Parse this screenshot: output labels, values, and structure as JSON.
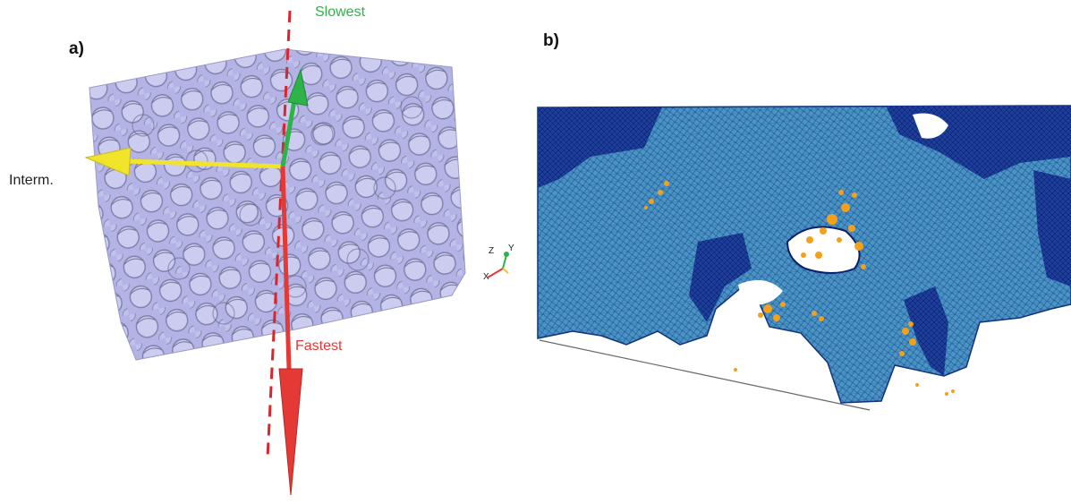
{
  "panel_a": {
    "label": "a)",
    "arrows": {
      "slowest": {
        "label": "Slowest",
        "color": "#2db34a"
      },
      "intermediate": {
        "label": "Interm.",
        "color": "#f2e32b"
      },
      "fastest": {
        "label": "Fastest",
        "color": "#e53935"
      }
    },
    "dashed_axis_color": "#d9262c",
    "foam_color": "#8e8fd6",
    "triad": {
      "z_label": "Z",
      "y_label": "Y",
      "x_label": "X"
    }
  },
  "panel_b": {
    "label": "b)",
    "surface_color": "#3f86b6",
    "mesh_line_color": "#0d2a8a",
    "particle_color": "#f3a11d"
  }
}
